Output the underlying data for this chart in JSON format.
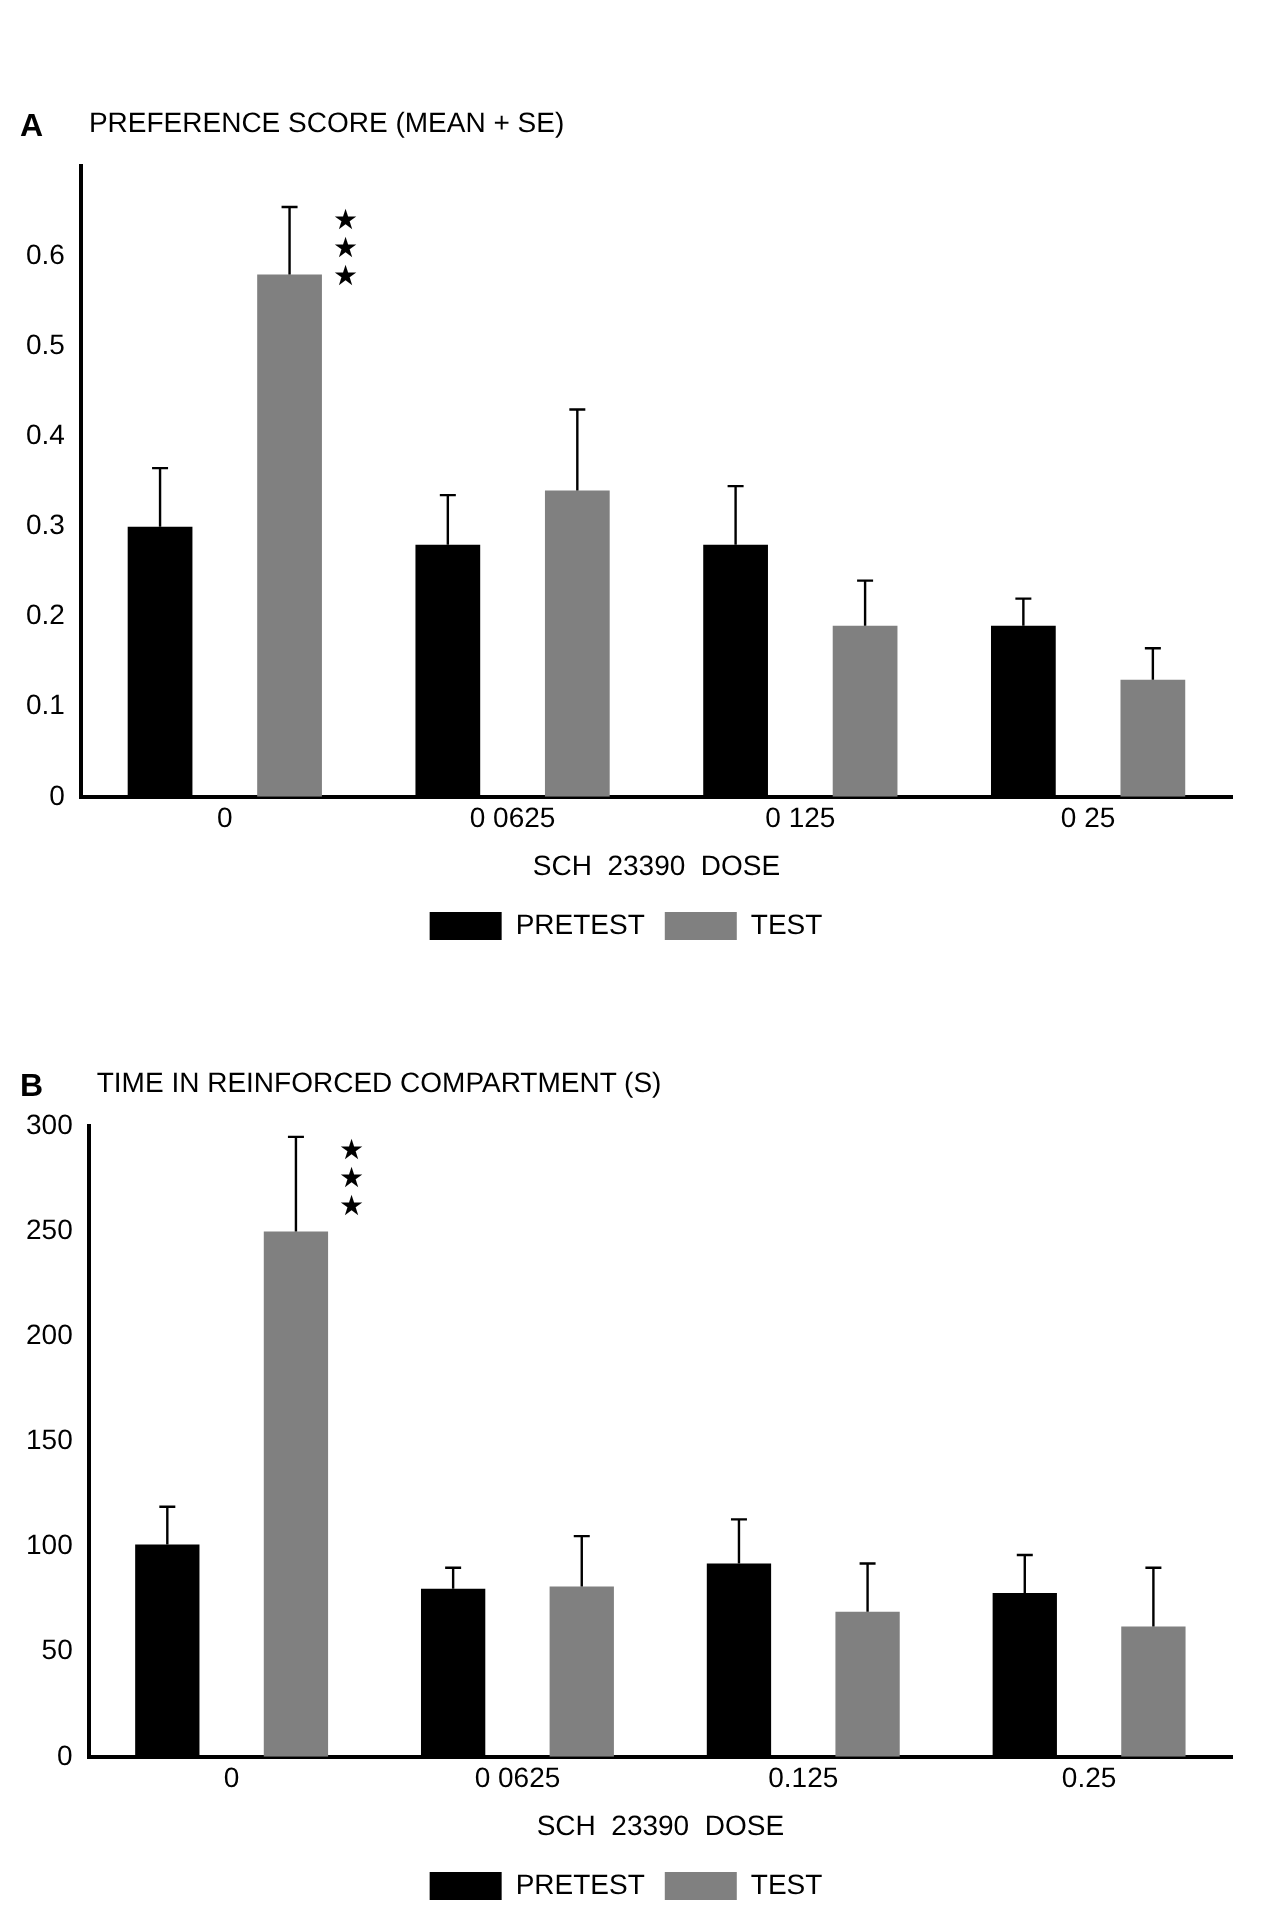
{
  "chart_data": [
    {
      "type": "bar",
      "title": "A",
      "ylabel": "PREFERENCE SCORE (MEAN + SE)",
      "xlabel": "SCH  23390  DOSE",
      "categories": [
        "0",
        "0 0625",
        "0 125",
        "0 25"
      ],
      "series": [
        {
          "name": "PRETEST",
          "color": "#000000",
          "values": [
            0.3,
            0.28,
            0.28,
            0.19
          ],
          "errors": [
            [
              0.3,
              0.365
            ],
            [
              0.28,
              0.335
            ],
            [
              0.28,
              0.345
            ],
            [
              0.19,
              0.22
            ]
          ]
        },
        {
          "name": "TEST",
          "color": "#808080",
          "values": [
            0.58,
            0.34,
            0.19,
            0.13
          ],
          "errors": [
            [
              0.58,
              0.655
            ],
            [
              0.34,
              0.43
            ],
            [
              0.19,
              0.24
            ],
            [
              0.13,
              0.165
            ]
          ]
        }
      ],
      "ylim": [
        0,
        0.7
      ],
      "yticks": [
        0,
        0.1,
        0.2,
        0.3,
        0.4,
        0.5,
        0.6
      ],
      "annotations": [
        "★★★"
      ],
      "grid": false,
      "legend": "bottom"
    },
    {
      "type": "bar",
      "title": "B",
      "ylabel": "TIME IN REINFORCED COMPARTMENT (S)",
      "xlabel": "SCH  23390  DOSE",
      "categories": [
        "0",
        "0 0625",
        "0.125",
        "0.25"
      ],
      "series": [
        {
          "name": "PRETEST",
          "color": "#000000",
          "values": [
            101,
            80,
            92,
            78
          ],
          "errors": [
            [
              101,
              119
            ],
            [
              80,
              90
            ],
            [
              92,
              113
            ],
            [
              78,
              96
            ]
          ]
        },
        {
          "name": "TEST",
          "color": "#808080",
          "values": [
            250,
            81,
            69,
            62
          ],
          "errors": [
            [
              250,
              295
            ],
            [
              81,
              105
            ],
            [
              69,
              92
            ],
            [
              62,
              90
            ]
          ]
        }
      ],
      "ylim": [
        0,
        300
      ],
      "yticks": [
        0,
        50,
        100,
        150,
        200,
        250,
        300
      ],
      "annotations": [
        "★★★"
      ],
      "grid": false,
      "legend": "bottom"
    }
  ]
}
